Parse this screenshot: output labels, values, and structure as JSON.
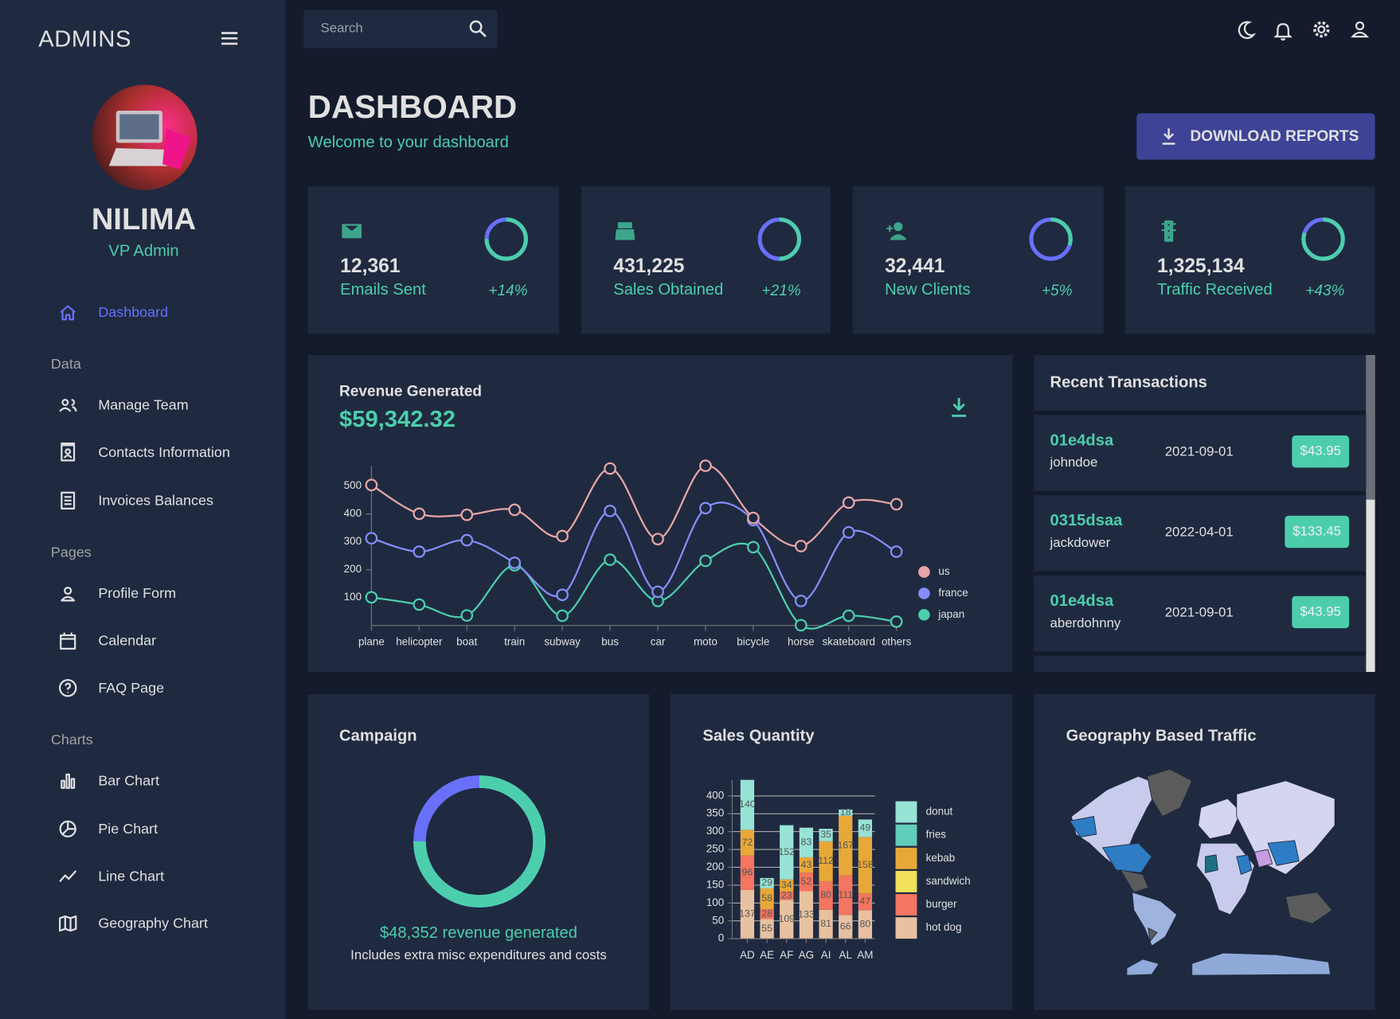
{
  "sidebar": {
    "brand": "ADMINS",
    "name": "NILIMA",
    "role": "VP Admin",
    "home": "Dashboard",
    "sections": [
      {
        "title": "Data",
        "items": [
          "Manage Team",
          "Contacts Information",
          "Invoices Balances"
        ]
      },
      {
        "title": "Pages",
        "items": [
          "Profile Form",
          "Calendar",
          "FAQ Page"
        ]
      },
      {
        "title": "Charts",
        "items": [
          "Bar Chart",
          "Pie Chart",
          "Line Chart",
          "Geography Chart"
        ]
      }
    ]
  },
  "topbar": {
    "search": "Search"
  },
  "header": {
    "title": "DASHBOARD",
    "subtitle": "Welcome to your dashboard",
    "button": "DOWNLOAD REPORTS"
  },
  "stats": [
    {
      "value": "12,361",
      "label": "Emails Sent",
      "increase": "+14%",
      "progress": 0.75
    },
    {
      "value": "431,225",
      "label": "Sales Obtained",
      "increase": "+21%",
      "progress": 0.5
    },
    {
      "value": "32,441",
      "label": "New Clients",
      "increase": "+5%",
      "progress": 0.3
    },
    {
      "value": "1,325,134",
      "label": "Traffic Received",
      "increase": "+43%",
      "progress": 0.8
    }
  ],
  "transactions": {
    "title": "Recent Transactions",
    "rows": [
      {
        "txId": "01e4dsa",
        "user": "johndoe",
        "date": "2021-09-01",
        "cost": "$43.95"
      },
      {
        "txId": "0315dsaa",
        "user": "jackdower",
        "date": "2022-04-01",
        "cost": "$133.45"
      },
      {
        "txId": "01e4dsa",
        "user": "aberdohnny",
        "date": "2021-09-01",
        "cost": "$43.95"
      }
    ]
  },
  "campaign": {
    "title": "Campaign",
    "progress": 0.75,
    "caption": "$48,352 revenue generated",
    "note": "Includes extra misc expenditures and costs"
  },
  "geography": {
    "title": "Geography Based Traffic"
  },
  "chart_data": [
    {
      "type": "line",
      "title": "Revenue Generated",
      "subtitle": "$59,342.32",
      "categories": [
        "plane",
        "helicopter",
        "boat",
        "train",
        "subway",
        "bus",
        "car",
        "moto",
        "bicycle",
        "horse",
        "skateboard",
        "others"
      ],
      "series": [
        {
          "name": "us",
          "color": "#e8a6a6",
          "values": [
            191,
            136,
            91,
            190,
            211,
            152,
            189,
            152,
            8,
            197,
            107,
            170
          ]
        },
        {
          "name": "france",
          "color": "#868dfb",
          "values": [
            212,
            190,
            270,
            9,
            75,
            175,
            33,
            189,
            97,
            87,
            299,
            251
          ]
        },
        {
          "name": "japan",
          "color": "#4cceac",
          "values": [
            101,
            75,
            36,
            216,
            35,
            236,
            88,
            232,
            281,
            1,
            35,
            14
          ]
        }
      ],
      "stacked": true,
      "ylim": [
        0,
        573
      ],
      "yticks": [
        100,
        200,
        300,
        400,
        500
      ],
      "legend": "right"
    },
    {
      "type": "bar",
      "title": "Sales Quantity",
      "categories": [
        "AD",
        "AE",
        "AF",
        "AG",
        "AI",
        "AL",
        "AM"
      ],
      "series": [
        {
          "name": "hot dog",
          "color": "#e8c1a0",
          "values": [
            137,
            55,
            109,
            133,
            81,
            66,
            80
          ]
        },
        {
          "name": "burger",
          "color": "#f47560",
          "values": [
            96,
            28,
            23,
            52,
            80,
            111,
            47
          ]
        },
        {
          "name": "sandwich",
          "color": "#f1e15b",
          "values": [
            null,
            null,
            null,
            null,
            null,
            null,
            null
          ]
        },
        {
          "name": "kebab",
          "color": "#e8a838",
          "values": [
            72,
            58,
            34,
            43,
            112,
            167,
            158
          ]
        },
        {
          "name": "fries",
          "color": "#61cdbb",
          "values": [
            null,
            null,
            null,
            null,
            null,
            null,
            null
          ]
        },
        {
          "name": "donut",
          "color": "#97e3d5",
          "values": [
            140,
            29,
            152,
            83,
            35,
            18,
            49
          ]
        }
      ],
      "stacked": true,
      "ylim": [
        0,
        445
      ],
      "yticks": [
        0,
        50,
        100,
        150,
        200,
        250,
        300,
        350,
        400
      ],
      "grid": true,
      "legend": "right"
    }
  ]
}
